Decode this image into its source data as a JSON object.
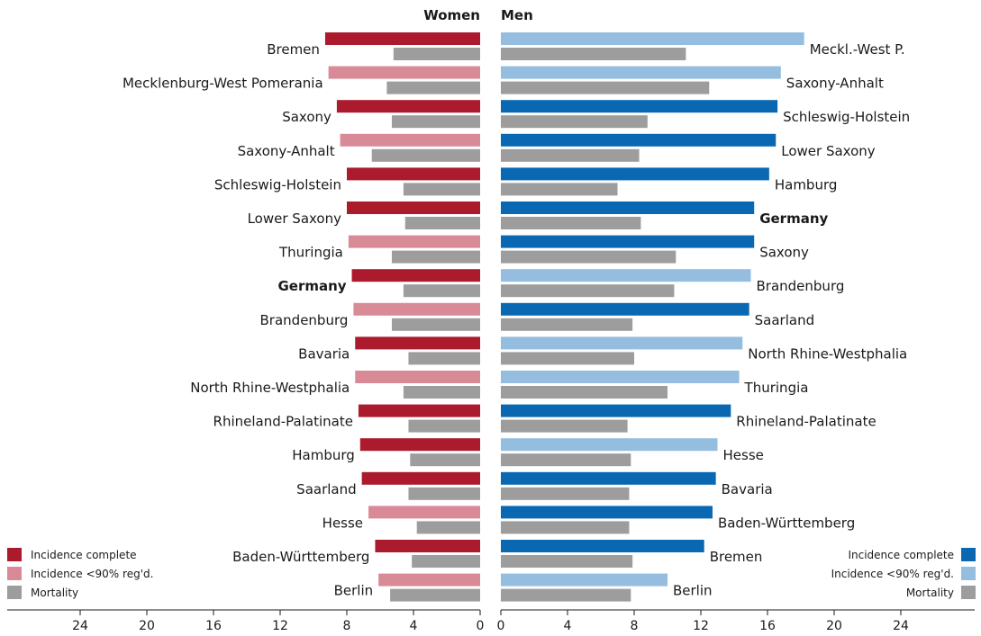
{
  "chart_data": {
    "type": "bar",
    "orientation": "horizontal-butterfly",
    "colors": {
      "women_complete": "#ab1a2d",
      "women_partial": "#d98a97",
      "men_complete": "#0a68b2",
      "men_partial": "#94bde0",
      "mortality": "#9d9d9d",
      "axis": "#1a1a1a"
    },
    "women": {
      "title": "Women",
      "xlim": [
        0,
        28
      ],
      "ticks": [
        24,
        20,
        16,
        12,
        8,
        4,
        0
      ],
      "rows": [
        {
          "label": "Bremen",
          "incidence": 9.3,
          "incidence_type": "complete",
          "mortality": 5.2,
          "bold": false
        },
        {
          "label": "Mecklenburg-West Pomerania",
          "incidence": 9.1,
          "incidence_type": "partial",
          "mortality": 5.6,
          "bold": false
        },
        {
          "label": "Saxony",
          "incidence": 8.6,
          "incidence_type": "complete",
          "mortality": 5.3,
          "bold": false
        },
        {
          "label": "Saxony-Anhalt",
          "incidence": 8.4,
          "incidence_type": "partial",
          "mortality": 6.5,
          "bold": false
        },
        {
          "label": "Schleswig-Holstein",
          "incidence": 8.0,
          "incidence_type": "complete",
          "mortality": 4.6,
          "bold": false
        },
        {
          "label": "Lower Saxony",
          "incidence": 8.0,
          "incidence_type": "complete",
          "mortality": 4.5,
          "bold": false
        },
        {
          "label": "Thuringia",
          "incidence": 7.9,
          "incidence_type": "partial",
          "mortality": 5.3,
          "bold": false
        },
        {
          "label": "Germany",
          "incidence": 7.7,
          "incidence_type": "complete",
          "mortality": 4.6,
          "bold": true
        },
        {
          "label": "Brandenburg",
          "incidence": 7.6,
          "incidence_type": "partial",
          "mortality": 5.3,
          "bold": false
        },
        {
          "label": "Bavaria",
          "incidence": 7.5,
          "incidence_type": "complete",
          "mortality": 4.3,
          "bold": false
        },
        {
          "label": "North Rhine-Westphalia",
          "incidence": 7.5,
          "incidence_type": "partial",
          "mortality": 4.6,
          "bold": false
        },
        {
          "label": "Rhineland-Palatinate",
          "incidence": 7.3,
          "incidence_type": "complete",
          "mortality": 4.3,
          "bold": false
        },
        {
          "label": "Hamburg",
          "incidence": 7.2,
          "incidence_type": "complete",
          "mortality": 4.2,
          "bold": false
        },
        {
          "label": "Saarland",
          "incidence": 7.1,
          "incidence_type": "complete",
          "mortality": 4.3,
          "bold": false
        },
        {
          "label": "Hesse",
          "incidence": 6.7,
          "incidence_type": "partial",
          "mortality": 3.8,
          "bold": false
        },
        {
          "label": "Baden-Württemberg",
          "incidence": 6.3,
          "incidence_type": "complete",
          "mortality": 4.1,
          "bold": false
        },
        {
          "label": "Berlin",
          "incidence": 6.1,
          "incidence_type": "partial",
          "mortality": 5.4,
          "bold": false
        }
      ],
      "legend": [
        {
          "label": "Incidence complete",
          "key": "women_complete"
        },
        {
          "label": "Incidence <90% reg'd.",
          "key": "women_partial"
        },
        {
          "label": "Mortality",
          "key": "mortality"
        }
      ]
    },
    "men": {
      "title": "Men",
      "xlim": [
        0,
        28
      ],
      "ticks": [
        0,
        4,
        8,
        12,
        16,
        20,
        24
      ],
      "rows": [
        {
          "label": "Meckl.-West P.",
          "incidence": 18.2,
          "incidence_type": "partial",
          "mortality": 11.1,
          "bold": false
        },
        {
          "label": "Saxony-Anhalt",
          "incidence": 16.8,
          "incidence_type": "partial",
          "mortality": 12.5,
          "bold": false
        },
        {
          "label": "Schleswig-Holstein",
          "incidence": 16.6,
          "incidence_type": "complete",
          "mortality": 8.8,
          "bold": false
        },
        {
          "label": "Lower Saxony",
          "incidence": 16.5,
          "incidence_type": "complete",
          "mortality": 8.3,
          "bold": false
        },
        {
          "label": "Hamburg",
          "incidence": 16.1,
          "incidence_type": "complete",
          "mortality": 7.0,
          "bold": false
        },
        {
          "label": "Germany",
          "incidence": 15.2,
          "incidence_type": "complete",
          "mortality": 8.4,
          "bold": true
        },
        {
          "label": "Saxony",
          "incidence": 15.2,
          "incidence_type": "complete",
          "mortality": 10.5,
          "bold": false
        },
        {
          "label": "Brandenburg",
          "incidence": 15.0,
          "incidence_type": "partial",
          "mortality": 10.4,
          "bold": false
        },
        {
          "label": "Saarland",
          "incidence": 14.9,
          "incidence_type": "complete",
          "mortality": 7.9,
          "bold": false
        },
        {
          "label": "North Rhine-Westphalia",
          "incidence": 14.5,
          "incidence_type": "partial",
          "mortality": 8.0,
          "bold": false
        },
        {
          "label": "Thuringia",
          "incidence": 14.3,
          "incidence_type": "partial",
          "mortality": 10.0,
          "bold": false
        },
        {
          "label": "Rhineland-Palatinate",
          "incidence": 13.8,
          "incidence_type": "complete",
          "mortality": 7.6,
          "bold": false
        },
        {
          "label": "Hesse",
          "incidence": 13.0,
          "incidence_type": "partial",
          "mortality": 7.8,
          "bold": false
        },
        {
          "label": "Bavaria",
          "incidence": 12.9,
          "incidence_type": "complete",
          "mortality": 7.7,
          "bold": false
        },
        {
          "label": "Baden-Württemberg",
          "incidence": 12.7,
          "incidence_type": "complete",
          "mortality": 7.7,
          "bold": false
        },
        {
          "label": "Bremen",
          "incidence": 12.2,
          "incidence_type": "complete",
          "mortality": 7.9,
          "bold": false
        },
        {
          "label": "Berlin",
          "incidence": 10.0,
          "incidence_type": "partial",
          "mortality": 7.8,
          "bold": false
        }
      ],
      "legend": [
        {
          "label": "Incidence complete",
          "key": "men_complete"
        },
        {
          "label": "Incidence <90% reg'd.",
          "key": "men_partial"
        },
        {
          "label": "Mortality",
          "key": "mortality"
        }
      ]
    }
  }
}
